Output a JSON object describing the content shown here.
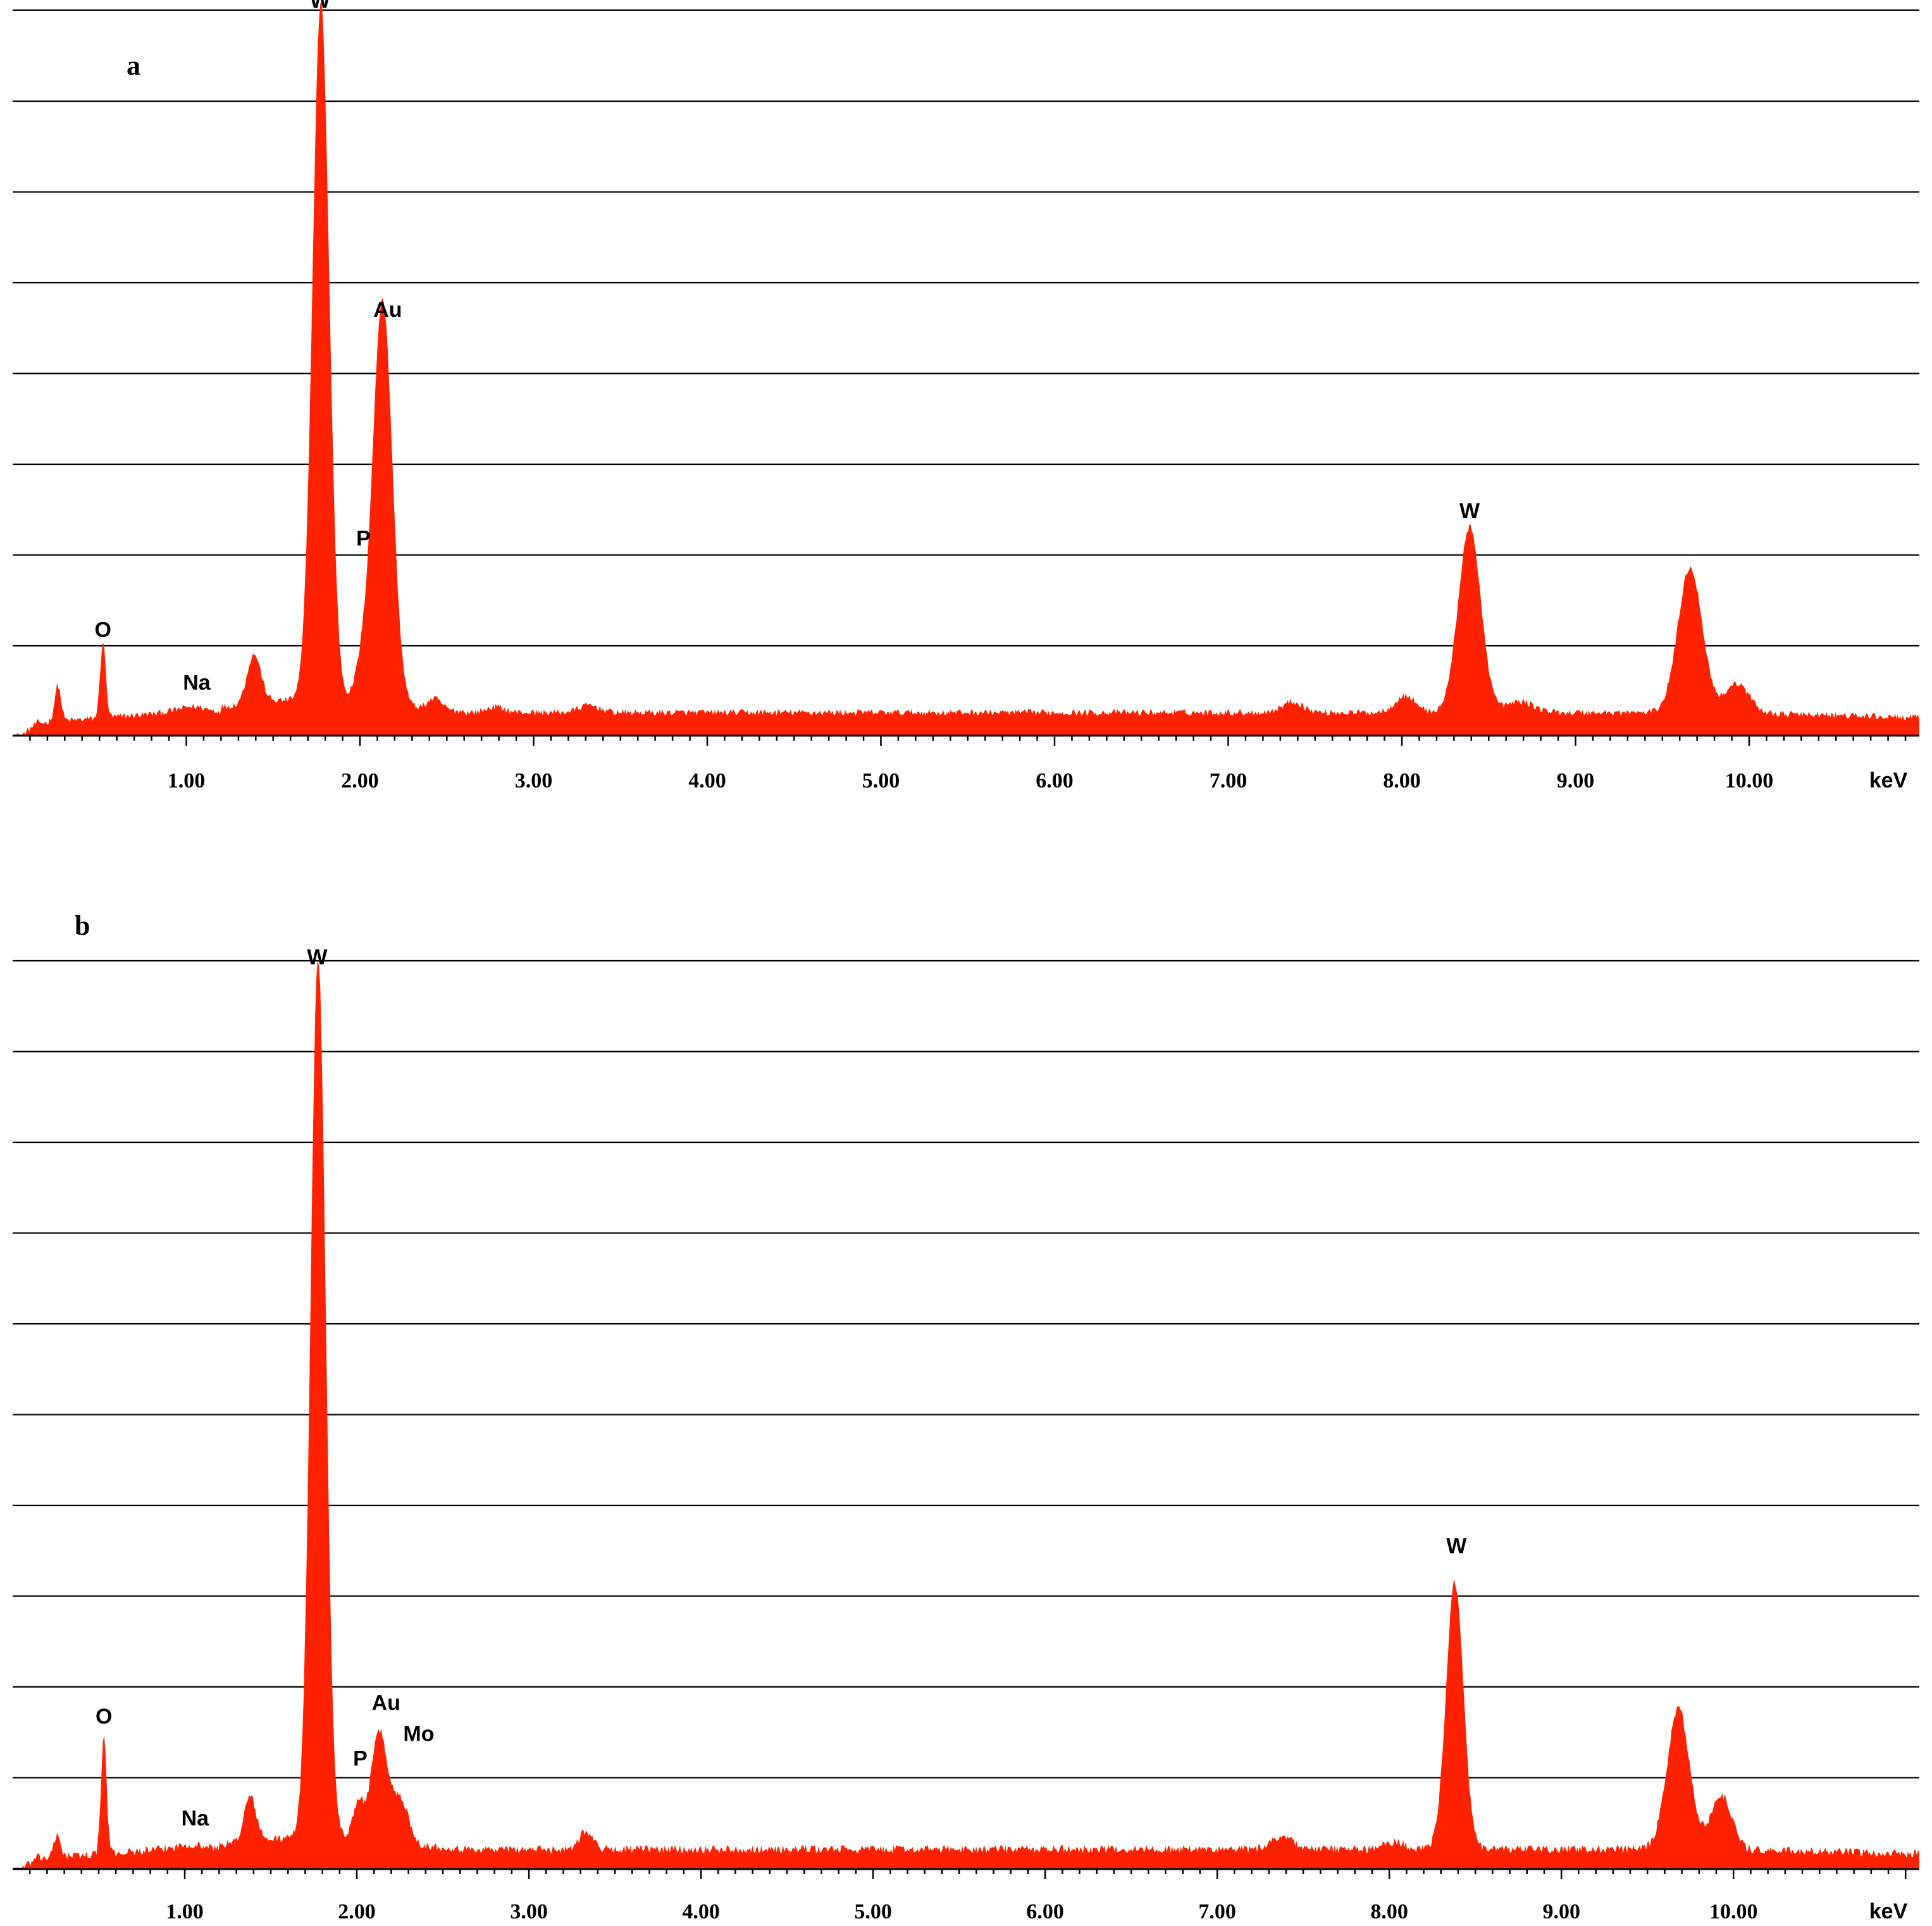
{
  "colors": {
    "spectrum": "#ff2200",
    "grid": "#000000",
    "background": "#ffffff"
  },
  "chart_data": [
    {
      "type": "area",
      "panel_label": "a",
      "xlabel": "keV",
      "x_ticks": [
        "1.00",
        "2.00",
        "3.00",
        "4.00",
        "5.00",
        "6.00",
        "7.00",
        "8.00",
        "9.00",
        "10.00"
      ],
      "xlim": [
        0.0,
        10.98
      ],
      "ylim": [
        0,
        100
      ],
      "grid": true,
      "background_level": 3.2,
      "peaks": [
        {
          "label": "",
          "x": 0.26,
          "height": 5.0,
          "width": 0.018
        },
        {
          "label": "O",
          "x": 0.52,
          "height": 10.5,
          "width": 0.016
        },
        {
          "label": "Na",
          "x": 1.04,
          "height": 0.8,
          "width": 0.08
        },
        {
          "label": "",
          "x": 1.39,
          "height": 6.8,
          "width": 0.04
        },
        {
          "label": "W",
          "x": 1.775,
          "height": 96.0,
          "width": 0.048
        },
        {
          "label": "P",
          "x": 2.01,
          "height": 4.0,
          "width": 0.04
        },
        {
          "label": "Au",
          "x": 2.13,
          "height": 56.0,
          "width": 0.056
        },
        {
          "label": "",
          "x": 2.43,
          "height": 1.5,
          "width": 0.04
        },
        {
          "label": "",
          "x": 2.78,
          "height": 0.8,
          "width": 0.05
        },
        {
          "label": "",
          "x": 3.32,
          "height": 1.0,
          "width": 0.06
        },
        {
          "label": "",
          "x": 7.37,
          "height": 1.5,
          "width": 0.06
        },
        {
          "label": "",
          "x": 8.02,
          "height": 2.3,
          "width": 0.06
        },
        {
          "label": "W",
          "x": 8.39,
          "height": 25.5,
          "width": 0.065
        },
        {
          "label": "",
          "x": 8.68,
          "height": 1.5,
          "width": 0.08
        },
        {
          "label": "",
          "x": 9.66,
          "height": 20.0,
          "width": 0.07
        },
        {
          "label": "",
          "x": 9.93,
          "height": 4.0,
          "width": 0.07
        }
      ],
      "annotations": [
        {
          "text": "O",
          "x": 0.52,
          "y": 13.6
        },
        {
          "text": "Na",
          "x": 1.06,
          "y": 6.3
        },
        {
          "text": "W",
          "x": 1.77,
          "y": 100.3
        },
        {
          "text": "P",
          "x": 2.02,
          "y": 26.2
        },
        {
          "text": "Au",
          "x": 2.16,
          "y": 57.7
        },
        {
          "text": "W",
          "x": 8.39,
          "y": 30.0
        }
      ]
    },
    {
      "type": "area",
      "panel_label": "b",
      "xlabel": "keV",
      "x_ticks": [
        "1.00",
        "2.00",
        "3.00",
        "4.00",
        "5.00",
        "6.00",
        "7.00",
        "8.00",
        "9.00",
        "10.00"
      ],
      "xlim": [
        0.0,
        11.08
      ],
      "ylim": [
        0,
        100
      ],
      "grid": true,
      "background_level": 2.2,
      "peaks": [
        {
          "label": "",
          "x": 0.26,
          "height": 2.3,
          "width": 0.02
        },
        {
          "label": "O",
          "x": 0.53,
          "height": 13.0,
          "width": 0.016
        },
        {
          "label": "Na",
          "x": 1.04,
          "height": 0.5,
          "width": 0.08
        },
        {
          "label": "",
          "x": 1.38,
          "height": 5.0,
          "width": 0.035
        },
        {
          "label": "W",
          "x": 1.775,
          "height": 97.0,
          "width": 0.044
        },
        {
          "label": "P",
          "x": 2.01,
          "height": 4.0,
          "width": 0.035
        },
        {
          "label": "Au",
          "x": 2.13,
          "height": 12.0,
          "width": 0.045
        },
        {
          "label": "Mo",
          "x": 2.25,
          "height": 5.0,
          "width": 0.05
        },
        {
          "label": "",
          "x": 3.33,
          "height": 2.0,
          "width": 0.04
        },
        {
          "label": "",
          "x": 7.38,
          "height": 1.5,
          "width": 0.06
        },
        {
          "label": "",
          "x": 8.03,
          "height": 0.8,
          "width": 0.06
        },
        {
          "label": "W",
          "x": 8.38,
          "height": 29.5,
          "width": 0.05
        },
        {
          "label": "",
          "x": 9.68,
          "height": 15.5,
          "width": 0.065
        },
        {
          "label": "",
          "x": 9.93,
          "height": 6.0,
          "width": 0.06
        }
      ],
      "annotations": [
        {
          "text": "O",
          "x": 0.53,
          "y": 16.0
        },
        {
          "text": "Na",
          "x": 1.06,
          "y": 4.8
        },
        {
          "text": "W",
          "x": 1.77,
          "y": 99.6
        },
        {
          "text": "P",
          "x": 2.02,
          "y": 11.4
        },
        {
          "text": "Au",
          "x": 2.17,
          "y": 17.5
        },
        {
          "text": "Mo",
          "x": 2.36,
          "y": 14.1
        },
        {
          "text": "W",
          "x": 8.39,
          "y": 34.8
        }
      ]
    }
  ]
}
